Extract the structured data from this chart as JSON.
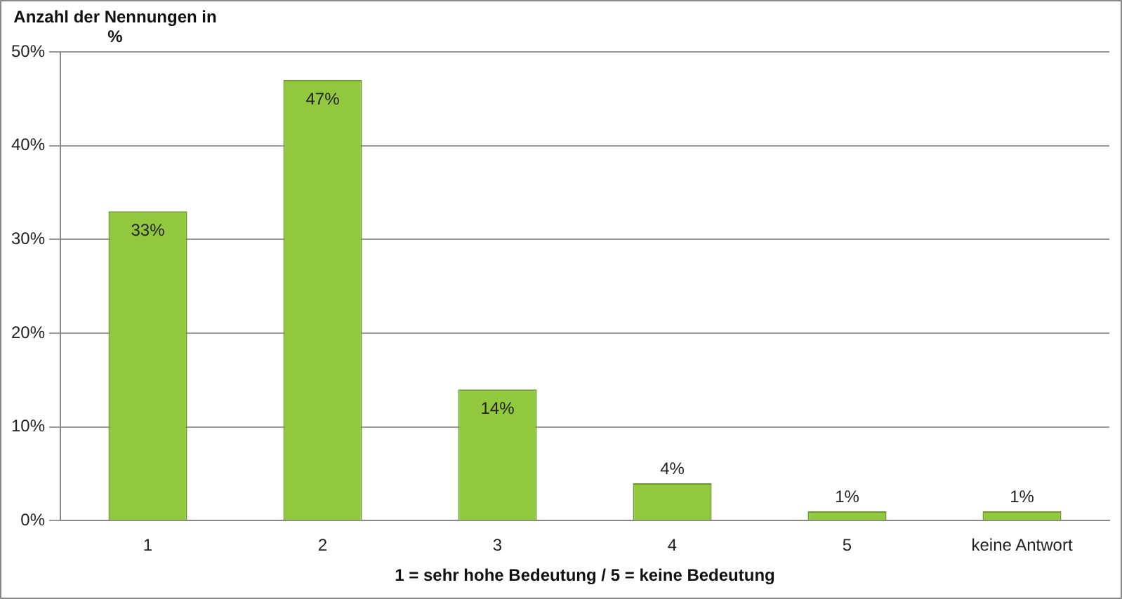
{
  "chart_data": {
    "type": "bar",
    "ylabel": "Anzahl der Nennungen in %",
    "xlabel": "1 = sehr hohe Bedeutung / 5 = keine Bedeutung",
    "categories": [
      "1",
      "2",
      "3",
      "4",
      "5",
      "keine Antwort"
    ],
    "values": [
      33,
      47,
      14,
      4,
      1,
      1
    ],
    "value_labels": [
      "33%",
      "47%",
      "14%",
      "4%",
      "1%",
      "1%"
    ],
    "color": "#92c83e",
    "ylim": [
      0,
      50
    ],
    "yticks": [
      {
        "value": 0,
        "label": "0%"
      },
      {
        "value": 10,
        "label": "10%"
      },
      {
        "value": 20,
        "label": "20%"
      },
      {
        "value": 30,
        "label": "30%"
      },
      {
        "value": 40,
        "label": "40%"
      },
      {
        "value": 50,
        "label": "50%"
      }
    ],
    "grid": "y"
  }
}
